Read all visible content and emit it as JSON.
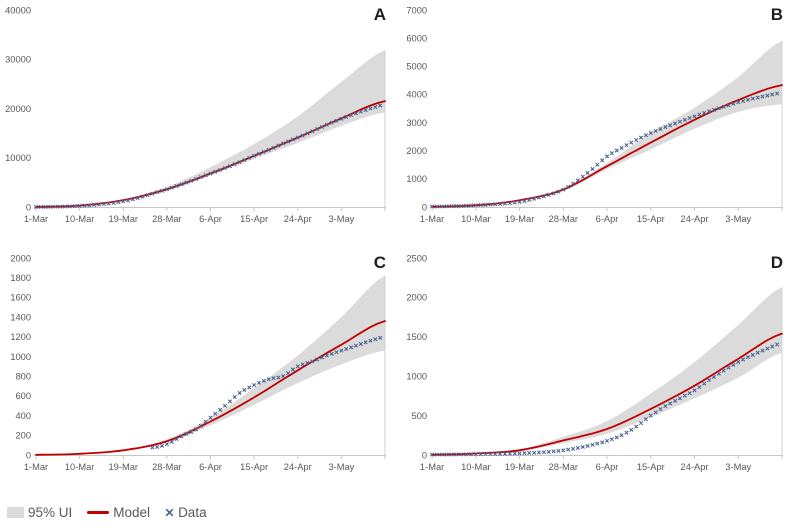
{
  "legend": {
    "items": [
      {
        "label": "95% UI",
        "swatch": "band"
      },
      {
        "label": "Model",
        "swatch": "line"
      },
      {
        "label": "Data",
        "swatch": "x-marker"
      }
    ]
  },
  "colors": {
    "band": "#dbdbdb",
    "model": "#c00000",
    "data": "#47618e",
    "axis_line": "#c6c6c6",
    "right_border": "#d2d2d2",
    "tick_text": "#595959",
    "panel_label": "#1f1f1f"
  },
  "chart_data": [
    {
      "type": "line",
      "panel_label": "A",
      "x_domain": [
        0,
        72
      ],
      "x_tick_days": [
        0,
        9,
        18,
        27,
        36,
        45,
        54,
        63
      ],
      "x_tick_labels": [
        "1-Mar",
        "10-Mar",
        "19-Mar",
        "28-Mar",
        "6-Apr",
        "15-Apr",
        "24-Apr",
        "3-May"
      ],
      "ylim": [
        0,
        40000
      ],
      "y_ticks": [
        0,
        10000,
        20000,
        30000,
        40000
      ],
      "grid": false,
      "series": {
        "band_upper": {
          "days": [
            0,
            9,
            18,
            27,
            36,
            45,
            54,
            63,
            72
          ],
          "values": [
            40,
            350,
            1550,
            4100,
            8100,
            12800,
            18400,
            25400,
            31800
          ]
        },
        "band_lower": {
          "days": [
            0,
            9,
            18,
            27,
            36,
            45,
            54,
            63,
            72
          ],
          "values": [
            25,
            260,
            1300,
            3300,
            6400,
            9800,
            13000,
            16500,
            19200
          ]
        },
        "model": {
          "days": [
            0,
            9,
            18,
            27,
            36,
            45,
            54,
            63,
            72
          ],
          "values": [
            30,
            300,
            1400,
            3600,
            6800,
            10400,
            14100,
            18000,
            21500
          ]
        },
        "data": {
          "days": [
            0,
            3,
            6,
            9,
            12,
            15,
            18,
            21,
            24,
            27,
            30,
            33,
            36,
            39,
            42,
            45,
            48,
            51,
            54,
            57,
            60,
            63,
            66,
            69,
            72
          ],
          "values": [
            20,
            40,
            90,
            200,
            400,
            700,
            1150,
            1800,
            2700,
            3600,
            4600,
            5700,
            6800,
            7900,
            9100,
            10400,
            11600,
            12900,
            14100,
            15400,
            16700,
            17900,
            19000,
            20000,
            20800
          ]
        }
      }
    },
    {
      "type": "line",
      "panel_label": "B",
      "x_domain": [
        0,
        72
      ],
      "x_tick_days": [
        0,
        9,
        18,
        27,
        36,
        45,
        54,
        63
      ],
      "x_tick_labels": [
        "1-Mar",
        "10-Mar",
        "19-Mar",
        "28-Mar",
        "6-Apr",
        "15-Apr",
        "24-Apr",
        "3-May"
      ],
      "ylim": [
        0,
        7000
      ],
      "y_ticks": [
        0,
        1000,
        2000,
        3000,
        4000,
        5000,
        6000,
        7000
      ],
      "grid": false,
      "series": {
        "band_upper": {
          "days": [
            0,
            9,
            18,
            27,
            36,
            45,
            54,
            63,
            72
          ],
          "values": [
            12,
            70,
            260,
            660,
            1560,
            2640,
            3530,
            4620,
            5900
          ]
        },
        "band_lower": {
          "days": [
            0,
            9,
            18,
            27,
            36,
            45,
            54,
            63,
            72
          ],
          "values": [
            8,
            52,
            220,
            580,
            1340,
            2050,
            2780,
            3380,
            3650
          ]
        },
        "model": {
          "days": [
            0,
            9,
            18,
            27,
            36,
            45,
            54,
            63,
            72
          ],
          "values": [
            10,
            60,
            240,
            620,
            1450,
            2290,
            3100,
            3800,
            4330
          ]
        },
        "data": {
          "days": [
            0,
            3,
            6,
            9,
            12,
            15,
            18,
            21,
            24,
            27,
            30,
            33,
            36,
            39,
            42,
            45,
            48,
            51,
            54,
            57,
            60,
            63,
            66,
            69,
            72
          ],
          "values": [
            15,
            25,
            40,
            60,
            85,
            120,
            180,
            290,
            430,
            620,
            950,
            1350,
            1800,
            2100,
            2380,
            2630,
            2840,
            3030,
            3220,
            3400,
            3560,
            3720,
            3850,
            3960,
            4060
          ]
        }
      }
    },
    {
      "type": "line",
      "panel_label": "C",
      "x_domain": [
        0,
        72
      ],
      "x_tick_days": [
        0,
        9,
        18,
        27,
        36,
        45,
        54,
        63
      ],
      "x_tick_labels": [
        "1-Mar",
        "10-Mar",
        "19-Mar",
        "28-Mar",
        "6-Apr",
        "15-Apr",
        "24-Apr",
        "3-May"
      ],
      "ylim": [
        0,
        2000
      ],
      "y_ticks": [
        0,
        200,
        400,
        600,
        800,
        1000,
        1200,
        1400,
        1600,
        1800,
        2000
      ],
      "grid": false,
      "series": {
        "band_upper": {
          "days": [
            0,
            9,
            18,
            27,
            36,
            45,
            54,
            63,
            72
          ],
          "values": [
            3,
            15,
            55,
            160,
            380,
            680,
            1010,
            1400,
            1820
          ]
        },
        "band_lower": {
          "days": [
            0,
            9,
            18,
            27,
            36,
            45,
            54,
            63,
            72
          ],
          "values": [
            1,
            9,
            42,
            125,
            300,
            510,
            730,
            920,
            1060
          ]
        },
        "model": {
          "days": [
            0,
            9,
            18,
            27,
            36,
            45,
            54,
            63,
            72
          ],
          "values": [
            2,
            12,
            48,
            140,
            340,
            585,
            860,
            1120,
            1360
          ]
        },
        "data": {
          "days": [
            24,
            27,
            30,
            33,
            36,
            39,
            42,
            45,
            48,
            51,
            54,
            57,
            60,
            63,
            66,
            69,
            72
          ],
          "values": [
            75,
            110,
            190,
            260,
            380,
            500,
            630,
            710,
            770,
            800,
            900,
            950,
            1010,
            1060,
            1110,
            1160,
            1200
          ]
        }
      }
    },
    {
      "type": "line",
      "panel_label": "D",
      "x_domain": [
        0,
        72
      ],
      "x_tick_days": [
        0,
        9,
        18,
        27,
        36,
        45,
        54,
        63
      ],
      "x_tick_labels": [
        "1-Mar",
        "10-Mar",
        "19-Mar",
        "28-Mar",
        "6-Apr",
        "15-Apr",
        "24-Apr",
        "3-May"
      ],
      "ylim": [
        0,
        2500
      ],
      "y_ticks": [
        0,
        500,
        1000,
        1500,
        2000,
        2500
      ],
      "grid": false,
      "series": {
        "band_upper": {
          "days": [
            0,
            9,
            18,
            27,
            36,
            45,
            54,
            63,
            72
          ],
          "values": [
            5,
            28,
            75,
            230,
            430,
            780,
            1180,
            1650,
            2130
          ]
        },
        "band_lower": {
          "days": [
            0,
            9,
            18,
            27,
            36,
            45,
            54,
            63,
            72
          ],
          "values": [
            2,
            15,
            50,
            150,
            270,
            480,
            720,
            980,
            1300
          ]
        },
        "model": {
          "days": [
            0,
            9,
            18,
            27,
            36,
            45,
            54,
            63,
            72
          ],
          "values": [
            3,
            20,
            60,
            185,
            330,
            585,
            880,
            1220,
            1540
          ]
        },
        "data": {
          "days": [
            0,
            3,
            6,
            9,
            12,
            15,
            18,
            21,
            24,
            27,
            30,
            33,
            36,
            39,
            42,
            45,
            48,
            51,
            54,
            57,
            60,
            63,
            66,
            69,
            72
          ],
          "values": [
            5,
            6,
            8,
            10,
            12,
            15,
            20,
            28,
            40,
            60,
            90,
            130,
            180,
            250,
            360,
            500,
            620,
            720,
            820,
            950,
            1070,
            1180,
            1270,
            1350,
            1420
          ]
        }
      }
    }
  ]
}
